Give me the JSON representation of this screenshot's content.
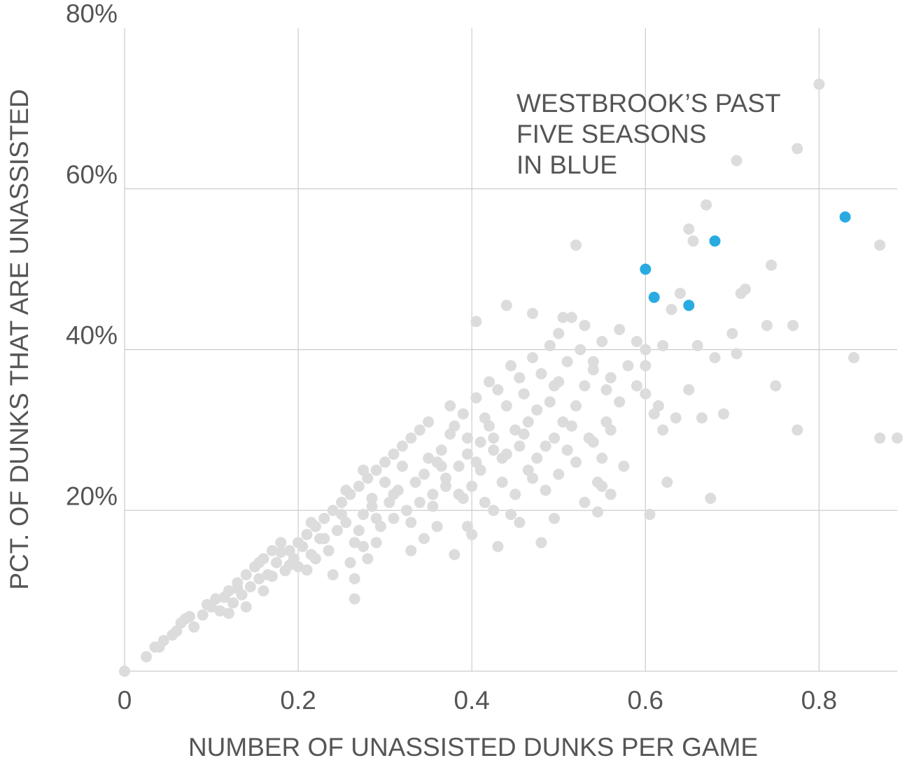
{
  "chart_data": {
    "type": "scatter",
    "title": "",
    "xlabel": "NUMBER OF UNASSISTED DUNKS PER GAME",
    "ylabel": "PCT. OF DUNKS THAT ARE UNASSISTED",
    "xlim": [
      0,
      0.89
    ],
    "ylim": [
      0,
      80
    ],
    "x_ticks": [
      {
        "value": 0,
        "label": "0"
      },
      {
        "value": 0.2,
        "label": "0.2"
      },
      {
        "value": 0.4,
        "label": "0.4"
      },
      {
        "value": 0.6,
        "label": "0.6"
      },
      {
        "value": 0.8,
        "label": "0.8"
      }
    ],
    "y_ticks": [
      {
        "value": 20,
        "label": "20%"
      },
      {
        "value": 40,
        "label": "40%"
      },
      {
        "value": 60,
        "label": "60%"
      },
      {
        "value": 80,
        "label": "80%"
      }
    ],
    "grid": true,
    "annotation": {
      "lines": [
        "WESTBROOK’S PAST",
        "FIVE SEASONS",
        "IN BLUE"
      ]
    },
    "colors": {
      "others": "#dcdcdc",
      "highlight": "#29abe2"
    },
    "series": [
      {
        "role": "others",
        "points": [
          [
            0.0,
            0.0
          ],
          [
            0.025,
            1.8
          ],
          [
            0.035,
            3.0
          ],
          [
            0.045,
            3.8
          ],
          [
            0.06,
            5.0
          ],
          [
            0.065,
            6.0
          ],
          [
            0.07,
            6.5
          ],
          [
            0.08,
            5.5
          ],
          [
            0.09,
            7.0
          ],
          [
            0.1,
            8.0
          ],
          [
            0.105,
            9.0
          ],
          [
            0.11,
            7.5
          ],
          [
            0.12,
            10.0
          ],
          [
            0.125,
            8.5
          ],
          [
            0.13,
            11.0
          ],
          [
            0.135,
            9.5
          ],
          [
            0.14,
            12.0
          ],
          [
            0.145,
            10.5
          ],
          [
            0.15,
            13.0
          ],
          [
            0.155,
            11.5
          ],
          [
            0.16,
            14.0
          ],
          [
            0.165,
            12.0
          ],
          [
            0.17,
            15.0
          ],
          [
            0.175,
            13.5
          ],
          [
            0.18,
            16.0
          ],
          [
            0.185,
            12.5
          ],
          [
            0.19,
            15.0
          ],
          [
            0.195,
            14.0
          ],
          [
            0.2,
            13.0
          ],
          [
            0.205,
            15.5
          ],
          [
            0.21,
            17.0
          ],
          [
            0.215,
            14.5
          ],
          [
            0.22,
            18.0
          ],
          [
            0.225,
            16.5
          ],
          [
            0.23,
            19.0
          ],
          [
            0.235,
            15.0
          ],
          [
            0.24,
            20.0
          ],
          [
            0.245,
            17.5
          ],
          [
            0.25,
            21.0
          ],
          [
            0.255,
            18.5
          ],
          [
            0.26,
            22.0
          ],
          [
            0.265,
            16.0
          ],
          [
            0.27,
            23.0
          ],
          [
            0.275,
            19.5
          ],
          [
            0.28,
            24.0
          ],
          [
            0.285,
            20.5
          ],
          [
            0.29,
            25.0
          ],
          [
            0.295,
            18.0
          ],
          [
            0.3,
            26.0
          ],
          [
            0.305,
            21.0
          ],
          [
            0.31,
            27.0
          ],
          [
            0.315,
            22.5
          ],
          [
            0.32,
            28.0
          ],
          [
            0.325,
            20.0
          ],
          [
            0.33,
            29.0
          ],
          [
            0.335,
            23.5
          ],
          [
            0.34,
            30.0
          ],
          [
            0.345,
            24.5
          ],
          [
            0.35,
            31.0
          ],
          [
            0.355,
            22.0
          ],
          [
            0.36,
            26.0
          ],
          [
            0.365,
            27.5
          ],
          [
            0.37,
            24.0
          ],
          [
            0.375,
            29.5
          ],
          [
            0.38,
            30.5
          ],
          [
            0.385,
            25.5
          ],
          [
            0.39,
            32.0
          ],
          [
            0.395,
            27.0
          ],
          [
            0.4,
            23.0
          ],
          [
            0.405,
            34.0
          ],
          [
            0.41,
            28.5
          ],
          [
            0.415,
            31.5
          ],
          [
            0.42,
            36.0
          ],
          [
            0.425,
            29.0
          ],
          [
            0.43,
            35.0
          ],
          [
            0.435,
            26.5
          ],
          [
            0.44,
            33.0
          ],
          [
            0.445,
            38.0
          ],
          [
            0.45,
            30.0
          ],
          [
            0.455,
            36.5
          ],
          [
            0.46,
            34.5
          ],
          [
            0.465,
            25.0
          ],
          [
            0.47,
            39.0
          ],
          [
            0.475,
            32.5
          ],
          [
            0.48,
            37.0
          ],
          [
            0.485,
            28.0
          ],
          [
            0.49,
            40.5
          ],
          [
            0.495,
            35.5
          ],
          [
            0.5,
            42.0
          ],
          [
            0.505,
            31.0
          ],
          [
            0.51,
            38.5
          ],
          [
            0.515,
            44.0
          ],
          [
            0.52,
            26.0
          ],
          [
            0.525,
            40.0
          ],
          [
            0.53,
            43.0
          ],
          [
            0.535,
            29.0
          ],
          [
            0.54,
            37.5
          ],
          [
            0.545,
            23.5
          ],
          [
            0.55,
            41.0
          ],
          [
            0.555,
            35.0
          ],
          [
            0.56,
            22.0
          ],
          [
            0.57,
            42.5
          ],
          [
            0.58,
            38.0
          ],
          [
            0.59,
            35.5
          ],
          [
            0.6,
            40.0
          ],
          [
            0.61,
            32.0
          ],
          [
            0.62,
            30.0
          ],
          [
            0.63,
            45.0
          ],
          [
            0.64,
            47.0
          ],
          [
            0.65,
            55.0
          ],
          [
            0.655,
            53.5
          ],
          [
            0.66,
            40.5
          ],
          [
            0.665,
            31.5
          ],
          [
            0.67,
            58.0
          ],
          [
            0.675,
            21.5
          ],
          [
            0.68,
            39.0
          ],
          [
            0.7,
            42.0
          ],
          [
            0.705,
            63.5
          ],
          [
            0.71,
            47.0
          ],
          [
            0.715,
            47.5
          ],
          [
            0.74,
            43.0
          ],
          [
            0.745,
            50.5
          ],
          [
            0.75,
            35.5
          ],
          [
            0.77,
            43.0
          ],
          [
            0.775,
            65.0
          ],
          [
            0.775,
            30.0
          ],
          [
            0.8,
            73.0
          ],
          [
            0.84,
            39.0
          ],
          [
            0.87,
            53.0
          ],
          [
            0.87,
            29.0
          ],
          [
            0.89,
            29.0
          ],
          [
            0.04,
            3.0
          ],
          [
            0.055,
            4.5
          ],
          [
            0.075,
            6.8
          ],
          [
            0.095,
            8.3
          ],
          [
            0.115,
            9.2
          ],
          [
            0.12,
            7.2
          ],
          [
            0.13,
            10.3
          ],
          [
            0.14,
            8.0
          ],
          [
            0.155,
            13.5
          ],
          [
            0.16,
            10.0
          ],
          [
            0.17,
            11.8
          ],
          [
            0.18,
            14.8
          ],
          [
            0.19,
            13.2
          ],
          [
            0.2,
            16.0
          ],
          [
            0.21,
            12.6
          ],
          [
            0.215,
            18.5
          ],
          [
            0.22,
            14.0
          ],
          [
            0.23,
            16.5
          ],
          [
            0.24,
            12.0
          ],
          [
            0.25,
            19.5
          ],
          [
            0.255,
            22.5
          ],
          [
            0.26,
            13.5
          ],
          [
            0.265,
            9.0
          ],
          [
            0.27,
            17.5
          ],
          [
            0.275,
            25.0
          ],
          [
            0.285,
            21.5
          ],
          [
            0.29,
            16.0
          ],
          [
            0.3,
            23.5
          ],
          [
            0.31,
            19.0
          ],
          [
            0.32,
            25.5
          ],
          [
            0.33,
            15.0
          ],
          [
            0.34,
            21.0
          ],
          [
            0.35,
            26.5
          ],
          [
            0.36,
            18.0
          ],
          [
            0.37,
            23.0
          ],
          [
            0.375,
            33.0
          ],
          [
            0.38,
            14.5
          ],
          [
            0.39,
            21.5
          ],
          [
            0.395,
            29.0
          ],
          [
            0.4,
            17.0
          ],
          [
            0.41,
            25.0
          ],
          [
            0.42,
            30.5
          ],
          [
            0.425,
            20.0
          ],
          [
            0.43,
            15.5
          ],
          [
            0.44,
            27.0
          ],
          [
            0.45,
            22.0
          ],
          [
            0.455,
            18.5
          ],
          [
            0.46,
            29.5
          ],
          [
            0.47,
            24.0
          ],
          [
            0.48,
            16.0
          ],
          [
            0.49,
            33.5
          ],
          [
            0.495,
            19.0
          ],
          [
            0.5,
            36.0
          ],
          [
            0.51,
            27.5
          ],
          [
            0.52,
            33.0
          ],
          [
            0.53,
            21.0
          ],
          [
            0.54,
            28.5
          ],
          [
            0.545,
            19.8
          ],
          [
            0.55,
            23.0
          ],
          [
            0.555,
            31.0
          ],
          [
            0.56,
            36.5
          ],
          [
            0.575,
            25.5
          ],
          [
            0.59,
            41.0
          ],
          [
            0.6,
            38.0
          ],
          [
            0.605,
            19.5
          ],
          [
            0.615,
            33.0
          ],
          [
            0.625,
            23.5
          ],
          [
            0.635,
            31.5
          ],
          [
            0.65,
            35.0
          ],
          [
            0.69,
            32.0
          ],
          [
            0.705,
            39.5
          ],
          [
            0.52,
            53.0
          ],
          [
            0.47,
            44.5
          ],
          [
            0.44,
            45.5
          ],
          [
            0.405,
            43.5
          ],
          [
            0.505,
            44.0
          ],
          [
            0.28,
            14.0
          ],
          [
            0.265,
            11.5
          ],
          [
            0.275,
            15.5
          ],
          [
            0.29,
            19.0
          ],
          [
            0.31,
            22.0
          ],
          [
            0.33,
            18.5
          ],
          [
            0.345,
            16.5
          ],
          [
            0.355,
            20.5
          ],
          [
            0.365,
            25.5
          ],
          [
            0.385,
            22.0
          ],
          [
            0.395,
            18.0
          ],
          [
            0.405,
            26.0
          ],
          [
            0.415,
            21.0
          ],
          [
            0.425,
            27.5
          ],
          [
            0.435,
            23.5
          ],
          [
            0.445,
            19.5
          ],
          [
            0.455,
            28.0
          ],
          [
            0.465,
            31.0
          ],
          [
            0.475,
            26.5
          ],
          [
            0.485,
            22.5
          ],
          [
            0.495,
            29.0
          ],
          [
            0.5,
            24.5
          ],
          [
            0.515,
            30.5
          ],
          [
            0.53,
            35.5
          ],
          [
            0.54,
            38.5
          ],
          [
            0.55,
            26.5
          ],
          [
            0.56,
            30.0
          ],
          [
            0.57,
            33.5
          ],
          [
            0.6,
            34.5
          ],
          [
            0.62,
            40.5
          ]
        ]
      },
      {
        "role": "highlight",
        "points": [
          [
            0.6,
            50.0
          ],
          [
            0.61,
            46.5
          ],
          [
            0.65,
            45.5
          ],
          [
            0.68,
            53.5
          ],
          [
            0.83,
            56.5
          ]
        ]
      }
    ]
  }
}
